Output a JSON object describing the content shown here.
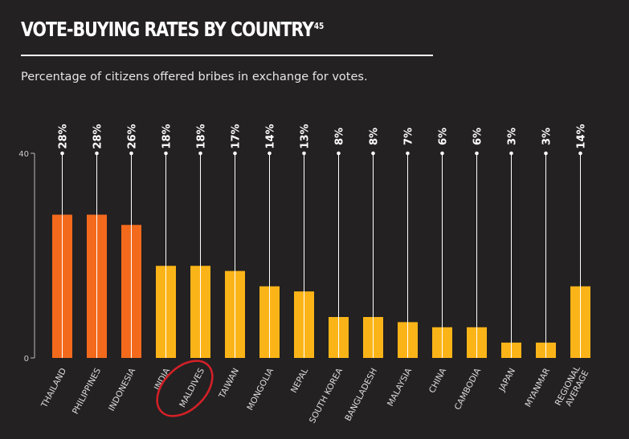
{
  "header": {
    "title": "VOTE-BUYING RATES BY COUNTRY",
    "footnote": "45",
    "subtitle": "Percentage of citizens offered bribes in exchange for votes."
  },
  "colors": {
    "background": "#232122",
    "top_three": "#f36a1d",
    "others": "#fbb418",
    "annotation_circle": "#d42027",
    "text": "#ffffff",
    "axis": "#bbbbbb"
  },
  "chart_data": {
    "type": "bar",
    "title": "VOTE-BUYING RATES BY COUNTRY",
    "subtitle": "Percentage of citizens offered bribes in exchange for votes.",
    "xlabel": "",
    "ylabel": "",
    "ylim": [
      0,
      40
    ],
    "yticks": [
      "0",
      "40"
    ],
    "grid": false,
    "categories": [
      "THAILAND",
      "PHILIPPINES",
      "INDONESIA",
      "INDIA",
      "MALDIVES",
      "TAIWAN",
      "MONGOLIA",
      "NEPAL",
      "SOUTH KOREA",
      "BANGLADESH",
      "MALAYSIA",
      "CHINA",
      "CAMBODIA",
      "JAPAN",
      "MYANMAR",
      "REGIONAL AVERAGE"
    ],
    "values": [
      28,
      28,
      26,
      18,
      18,
      17,
      14,
      13,
      8,
      8,
      7,
      6,
      6,
      3,
      3,
      14
    ],
    "labels": [
      "28%",
      "28%",
      "26%",
      "18%",
      "18%",
      "17%",
      "14%",
      "13%",
      "8%",
      "8%",
      "7%",
      "6%",
      "6%",
      "3%",
      "3%",
      "14%"
    ],
    "highlight": [
      "orange",
      "orange",
      "orange",
      "yellow",
      "yellow",
      "yellow",
      "yellow",
      "yellow",
      "yellow",
      "yellow",
      "yellow",
      "yellow",
      "yellow",
      "yellow",
      "yellow",
      "yellow"
    ],
    "circled_category": "MALDIVES"
  }
}
